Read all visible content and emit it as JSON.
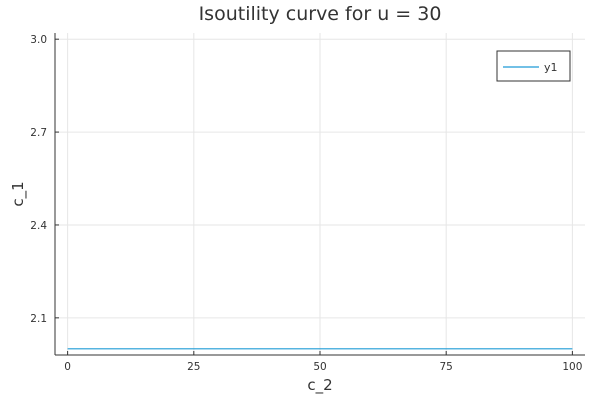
{
  "chart_data": {
    "type": "line",
    "title": "Isoutility curve for u = 30",
    "xlabel": "c_2",
    "ylabel": "c_1",
    "xlim": [
      -2.5,
      102.5
    ],
    "ylim": [
      1.98,
      3.02
    ],
    "xticks": [
      0,
      25,
      50,
      75,
      100
    ],
    "yticks": [
      2.1,
      2.4,
      2.7,
      3.0
    ],
    "xtick_labels": [
      "0",
      "25",
      "50",
      "75",
      "100"
    ],
    "ytick_labels": [
      "2.1",
      "2.4",
      "2.7",
      "3.0"
    ],
    "grid": true,
    "legend_position": "top-right",
    "series": [
      {
        "name": "y1",
        "color": "#1f9bd6",
        "x": [
          0,
          100
        ],
        "y": [
          2.0,
          2.0
        ]
      }
    ]
  }
}
